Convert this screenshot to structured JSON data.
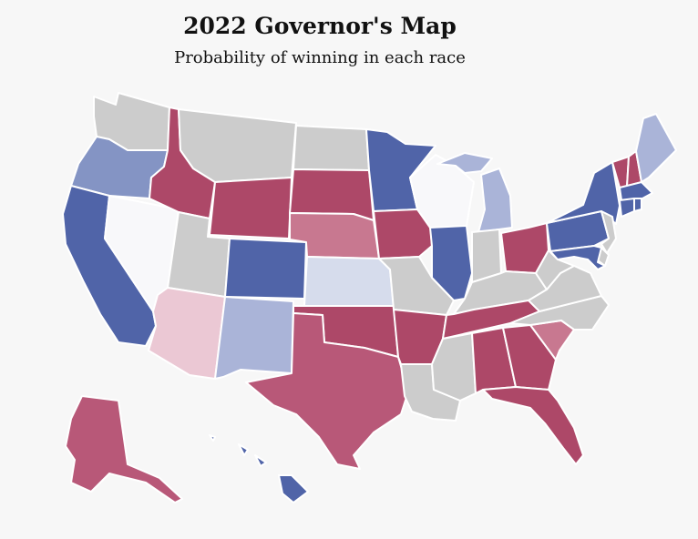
{
  "title": "2022 Governor's Map",
  "subtitle": "Probability of winning in each race",
  "colors": {
    "no_race": "#cccccc",
    "solid_dem": "#5064a8",
    "likely_dem": "#8494c4",
    "lean_dem": "#aab4d8",
    "tilt_dem": "#d6dcec",
    "tossup": "#f8f8fa",
    "tilt_rep": "#ebc8d4",
    "lean_rep": "#c87890",
    "likely_rep": "#b85878",
    "solid_rep": "#ad4868",
    "background": "#f7f7f7"
  },
  "states": [
    {
      "id": "WA",
      "rating": "no_race"
    },
    {
      "id": "OR",
      "rating": "likely_dem"
    },
    {
      "id": "CA",
      "rating": "solid_dem"
    },
    {
      "id": "NV",
      "rating": "tossup"
    },
    {
      "id": "ID",
      "rating": "solid_rep"
    },
    {
      "id": "MT",
      "rating": "no_race"
    },
    {
      "id": "WY",
      "rating": "solid_rep"
    },
    {
      "id": "UT",
      "rating": "no_race"
    },
    {
      "id": "AZ",
      "rating": "tilt_rep"
    },
    {
      "id": "CO",
      "rating": "solid_dem"
    },
    {
      "id": "NM",
      "rating": "lean_dem"
    },
    {
      "id": "ND",
      "rating": "no_race"
    },
    {
      "id": "SD",
      "rating": "solid_rep"
    },
    {
      "id": "NE",
      "rating": "lean_rep"
    },
    {
      "id": "KS",
      "rating": "tilt_dem"
    },
    {
      "id": "OK",
      "rating": "solid_rep"
    },
    {
      "id": "TX",
      "rating": "likely_rep"
    },
    {
      "id": "MN",
      "rating": "solid_dem"
    },
    {
      "id": "IA",
      "rating": "solid_rep"
    },
    {
      "id": "MO",
      "rating": "no_race"
    },
    {
      "id": "AR",
      "rating": "solid_rep"
    },
    {
      "id": "LA",
      "rating": "no_race"
    },
    {
      "id": "WI",
      "rating": "tossup"
    },
    {
      "id": "IL",
      "rating": "solid_dem"
    },
    {
      "id": "MI",
      "rating": "lean_dem"
    },
    {
      "id": "IN",
      "rating": "no_race"
    },
    {
      "id": "OH",
      "rating": "solid_rep"
    },
    {
      "id": "KY",
      "rating": "no_race"
    },
    {
      "id": "TN",
      "rating": "solid_rep"
    },
    {
      "id": "MS",
      "rating": "no_race"
    },
    {
      "id": "AL",
      "rating": "solid_rep"
    },
    {
      "id": "GA",
      "rating": "solid_rep"
    },
    {
      "id": "FL",
      "rating": "solid_rep"
    },
    {
      "id": "SC",
      "rating": "lean_rep"
    },
    {
      "id": "NC",
      "rating": "no_race"
    },
    {
      "id": "VA",
      "rating": "no_race"
    },
    {
      "id": "WV",
      "rating": "no_race"
    },
    {
      "id": "PA",
      "rating": "solid_dem"
    },
    {
      "id": "NY",
      "rating": "solid_dem"
    },
    {
      "id": "VT",
      "rating": "solid_rep"
    },
    {
      "id": "NH",
      "rating": "solid_rep"
    },
    {
      "id": "ME",
      "rating": "lean_dem"
    },
    {
      "id": "MA",
      "rating": "solid_dem"
    },
    {
      "id": "CT",
      "rating": "solid_dem"
    },
    {
      "id": "RI",
      "rating": "solid_dem"
    },
    {
      "id": "NJ",
      "rating": "no_race"
    },
    {
      "id": "DE",
      "rating": "no_race"
    },
    {
      "id": "MD",
      "rating": "solid_dem"
    },
    {
      "id": "AK",
      "rating": "likely_rep"
    },
    {
      "id": "HI",
      "rating": "solid_dem"
    }
  ]
}
